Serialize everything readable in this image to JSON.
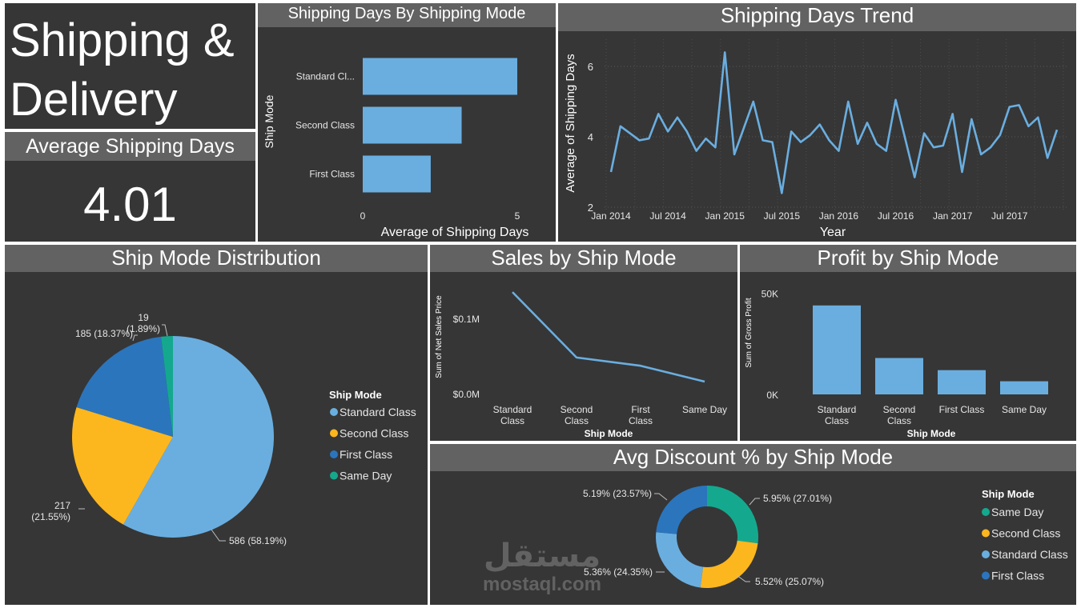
{
  "dashboard": {
    "title_line1": "Shipping &",
    "title_line2": "Delivery",
    "kpi_label": "Average Shipping Days",
    "kpi_value": "4.01"
  },
  "watermark": {
    "arabic": "مستقل",
    "latin": "mostaql.com"
  },
  "colors": {
    "blue": "#6AAEE0",
    "darkblue": "#2B75BD",
    "yellow": "#FDB71E",
    "teal": "#14A98E",
    "panel": "#363636",
    "header": "#626262"
  },
  "chart_data": [
    {
      "id": "shipping_days_by_mode",
      "type": "bar",
      "orientation": "horizontal",
      "title": "Shipping Days By Shipping Mode",
      "xlabel": "Average of Shipping Days",
      "ylabel": "Ship Mode",
      "categories": [
        "Standard Cl...",
        "Second Class",
        "First Class"
      ],
      "values": [
        5.0,
        3.2,
        2.2
      ],
      "xlim": [
        0,
        5
      ],
      "xticks": [
        "0",
        "5"
      ]
    },
    {
      "id": "shipping_days_trend",
      "type": "line",
      "title": "Shipping Days Trend",
      "xlabel": "Year",
      "ylabel": "Average of Shipping Days",
      "x": [
        "2014-01",
        "2014-02",
        "2014-03",
        "2014-04",
        "2014-05",
        "2014-06",
        "2014-07",
        "2014-08",
        "2014-09",
        "2014-10",
        "2014-11",
        "2014-12",
        "2015-01",
        "2015-02",
        "2015-03",
        "2015-04",
        "2015-05",
        "2015-06",
        "2015-07",
        "2015-08",
        "2015-09",
        "2015-10",
        "2015-11",
        "2015-12",
        "2016-01",
        "2016-02",
        "2016-03",
        "2016-04",
        "2016-05",
        "2016-06",
        "2016-07",
        "2016-08",
        "2016-09",
        "2016-10",
        "2016-11",
        "2016-12",
        "2017-01",
        "2017-02",
        "2017-03",
        "2017-04",
        "2017-05",
        "2017-06",
        "2017-07",
        "2017-08",
        "2017-09",
        "2017-10",
        "2017-11",
        "2017-12"
      ],
      "values": [
        3.0,
        4.3,
        4.1,
        3.9,
        3.95,
        4.65,
        4.15,
        4.55,
        4.15,
        3.6,
        3.95,
        3.7,
        6.4,
        3.5,
        4.25,
        5.0,
        3.9,
        3.85,
        2.4,
        4.15,
        3.85,
        4.05,
        4.35,
        3.9,
        3.6,
        5.0,
        3.8,
        4.4,
        3.8,
        3.6,
        5.05,
        3.95,
        2.85,
        4.1,
        3.7,
        3.75,
        4.65,
        3.0,
        4.5,
        3.5,
        3.7,
        4.05,
        4.85,
        4.9,
        4.3,
        4.55,
        3.4,
        4.2
      ],
      "ylim": [
        2,
        7
      ],
      "yticks": [
        "2",
        "4",
        "6"
      ],
      "xticks": [
        {
          "label": "Jan 2014",
          "index": 0
        },
        {
          "label": "Jul 2014",
          "index": 6
        },
        {
          "label": "Jan 2015",
          "index": 12
        },
        {
          "label": "Jul 2015",
          "index": 18
        },
        {
          "label": "Jan 2016",
          "index": 24
        },
        {
          "label": "Jul 2016",
          "index": 30
        },
        {
          "label": "Jan 2017",
          "index": 36
        },
        {
          "label": "Jul 2017",
          "index": 42
        }
      ]
    },
    {
      "id": "ship_mode_distribution",
      "type": "pie",
      "title": "Ship Mode Distribution",
      "legend_title": "Ship Mode",
      "legend_position": "right",
      "slices": [
        {
          "name": "Standard Class",
          "value": 586,
          "label": "586 (58.19%)",
          "color": "#6AAEE0"
        },
        {
          "name": "Second Class",
          "value": 217,
          "label_line1": "217",
          "label_line2": "(21.55%)",
          "color": "#FDB71E"
        },
        {
          "name": "First Class",
          "value": 185,
          "label": "185 (18.37%)",
          "color": "#2B75BD"
        },
        {
          "name": "Same Day",
          "value": 19,
          "label_line1": "19",
          "label_line2": "(1.89%)",
          "color": "#14A98E"
        }
      ]
    },
    {
      "id": "sales_by_ship_mode",
      "type": "line",
      "title": "Sales by Ship Mode",
      "xlabel": "Ship Mode",
      "ylabel": "Sum of Net Sales Price",
      "categories": [
        [
          "Standard",
          "Class"
        ],
        [
          "Second",
          "Class"
        ],
        [
          "First",
          "Class"
        ],
        [
          "Same Day"
        ]
      ],
      "values": [
        0.135,
        0.048,
        0.037,
        0.016
      ],
      "ylim": [
        0,
        0.15
      ],
      "yticks": [
        {
          "label": "$0.0M",
          "value": 0
        },
        {
          "label": "$0.1M",
          "value": 0.1
        }
      ]
    },
    {
      "id": "profit_by_ship_mode",
      "type": "bar",
      "title": "Profit by Ship Mode",
      "xlabel": "Ship Mode",
      "ylabel": "Sum of Gross Profit",
      "categories": [
        [
          "Standard",
          "Class"
        ],
        [
          "Second",
          "Class"
        ],
        [
          "First Class"
        ],
        [
          "Same Day"
        ]
      ],
      "values": [
        44000,
        18000,
        12000,
        6500
      ],
      "ylim": [
        0,
        55000
      ],
      "yticks": [
        {
          "label": "0K",
          "value": 0
        },
        {
          "label": "50K",
          "value": 50000
        }
      ]
    },
    {
      "id": "avg_discount_by_ship_mode",
      "type": "pie",
      "donut": true,
      "title": "Avg Discount % by Ship Mode",
      "legend_title": "Ship Mode",
      "legend_position": "right",
      "slices": [
        {
          "name": "Same Day",
          "value": 5.95,
          "label": "5.95% (27.01%)",
          "color": "#14A98E"
        },
        {
          "name": "Second Class",
          "value": 5.52,
          "label": "5.52% (25.07%)",
          "color": "#FDB71E"
        },
        {
          "name": "Standard Class",
          "value": 5.36,
          "label": "5.36% (24.35%)",
          "color": "#6AAEE0"
        },
        {
          "name": "First Class",
          "value": 5.19,
          "label": "5.19% (23.57%)",
          "color": "#2B75BD"
        }
      ]
    }
  ]
}
